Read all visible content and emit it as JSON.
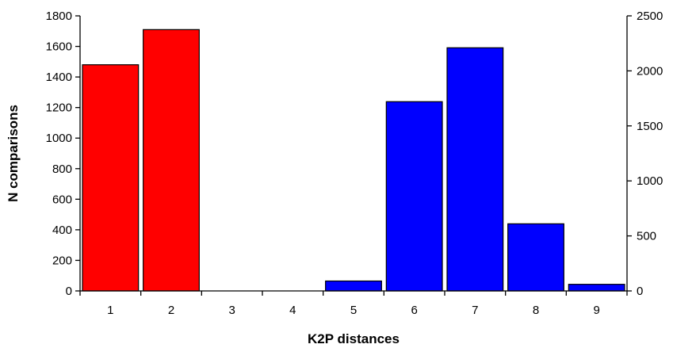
{
  "chart_data": {
    "type": "bar",
    "categories": [
      "1",
      "2",
      "3",
      "4",
      "5",
      "6",
      "7",
      "8",
      "9"
    ],
    "series": [
      {
        "axis": "left",
        "color": "#ff0000",
        "values": [
          1480,
          1710,
          0,
          0,
          null,
          null,
          null,
          null,
          null
        ]
      },
      {
        "axis": "right",
        "color": "#0000ff",
        "values": [
          null,
          null,
          null,
          null,
          90,
          1720,
          2210,
          610,
          60
        ]
      }
    ],
    "xlabel": "K2P distances",
    "ylabel": "N comparisons",
    "ylim": [
      0,
      1800
    ],
    "y_ticks": [
      0,
      200,
      400,
      600,
      800,
      1000,
      1200,
      1400,
      1600,
      1800
    ],
    "y2lim": [
      0,
      2500
    ],
    "y2_ticks": [
      0,
      500,
      1000,
      1500,
      2000,
      2500
    ],
    "grid": false,
    "legend": "none"
  }
}
